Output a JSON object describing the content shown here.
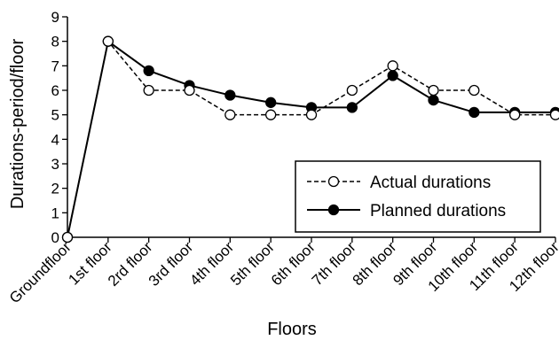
{
  "chart_data": {
    "type": "line",
    "xlabel": "Floors",
    "ylabel": "Durations-period/floor",
    "ylim": [
      0,
      9
    ],
    "yticks": [
      0,
      1,
      2,
      3,
      4,
      5,
      6,
      7,
      8,
      9
    ],
    "grid": false,
    "legend_position": "bottom-right",
    "categories": [
      "Groundfloor",
      "1st floor",
      "2rd floor",
      "3rd floor",
      "4th floor",
      "5th floor",
      "6th floor",
      "7th floor",
      "8th floor",
      "9th floor",
      "10th floor",
      "11th floor",
      "12th floor"
    ],
    "series": [
      {
        "name": "Actual durations",
        "style": "dashed",
        "marker": "open-circle",
        "color": "#000000",
        "values": [
          0,
          8,
          6,
          6,
          5,
          5,
          5,
          6,
          7,
          6,
          6,
          5,
          5
        ]
      },
      {
        "name": "Planned durations",
        "style": "solid",
        "marker": "filled-circle",
        "color": "#000000",
        "values": [
          0,
          8,
          6.8,
          6.2,
          5.8,
          5.5,
          5.3,
          5.3,
          6.6,
          5.6,
          5.1,
          5.1,
          5.1
        ]
      }
    ]
  }
}
